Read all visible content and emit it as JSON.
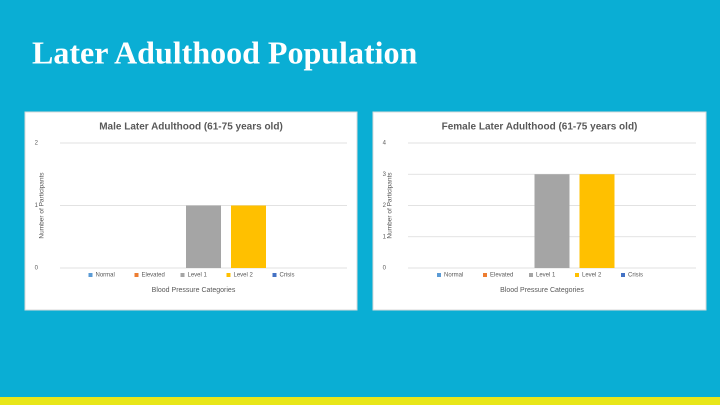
{
  "title": "Later Adulthood Population",
  "chart_data": [
    {
      "type": "bar",
      "title": "Male Later Adulthood (61-75 years old)",
      "x_label": "Blood Pressure Categories",
      "y_label": "Number of Participants",
      "categories": [
        null
      ],
      "series": [
        {
          "name": "Normal",
          "color": "#5b9bd5",
          "values": [
            0
          ]
        },
        {
          "name": "Elevated",
          "color": "#ed7d31",
          "values": [
            0
          ]
        },
        {
          "name": "Level 1",
          "color": "#a5a5a5",
          "values": [
            1
          ]
        },
        {
          "name": "Level 2",
          "color": "#ffc000",
          "values": [
            1
          ]
        },
        {
          "name": "Crisis",
          "color": "#4472c4",
          "values": [
            0
          ]
        }
      ],
      "ylim": [
        0,
        2
      ],
      "yticks": [
        0,
        1,
        2
      ],
      "grid": true,
      "legend": "bottom"
    },
    {
      "type": "bar",
      "title": "Female Later Adulthood (61-75 years old)",
      "x_label": "Blood Pressure Categories",
      "y_label": "Number of Participants",
      "categories": [
        null
      ],
      "series": [
        {
          "name": "Normal",
          "color": "#5b9bd5",
          "values": [
            0
          ]
        },
        {
          "name": "Elevated",
          "color": "#ed7d31",
          "values": [
            0
          ]
        },
        {
          "name": "Level 1",
          "color": "#a5a5a5",
          "values": [
            3
          ]
        },
        {
          "name": "Level 2",
          "color": "#ffc000",
          "values": [
            3
          ]
        },
        {
          "name": "Crisis",
          "color": "#4472c4",
          "values": [
            0
          ]
        }
      ],
      "ylim": [
        0,
        4
      ],
      "yticks": [
        0,
        1,
        2,
        3,
        4
      ],
      "grid": true,
      "legend": "bottom"
    }
  ]
}
